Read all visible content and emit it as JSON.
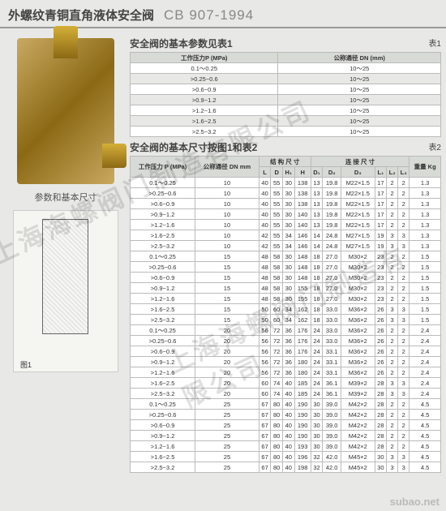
{
  "header": {
    "title_cn": "外螺纹青铜直角液体安全阀",
    "title_code": "CB 907-1994"
  },
  "left": {
    "param_label": "参数和基本尺寸",
    "fig_label": "图1"
  },
  "sect1": {
    "title": "安全阀的基本参数见表1",
    "label": "表1"
  },
  "table1": {
    "headers": [
      "工作压力P (MPa)",
      "公称通径 DN (mm)"
    ],
    "rows": [
      [
        "0.1～0.25",
        "10～25"
      ],
      [
        ">0.25~0.6",
        "10～25"
      ],
      [
        ">0.6~0.9",
        "10～25"
      ],
      [
        ">0.9~1.2",
        "10～25"
      ],
      [
        ">1.2~1.6",
        "10～25"
      ],
      [
        ">1.6~2.5",
        "10～25"
      ],
      [
        ">2.5~3.2",
        "10～25"
      ]
    ]
  },
  "sect2": {
    "title": "安全阀的基本尺寸按图1和表2",
    "label": "表2"
  },
  "table2": {
    "group_headers": [
      "工作压力 P (MPa)",
      "公称通径 DN mm",
      "结 构 尺 寸",
      "连 接 尺 寸",
      "重量 Kg"
    ],
    "sub_headers": [
      "L",
      "D",
      "H₁",
      "H",
      "D₁",
      "D₂",
      "D₃",
      "L₁",
      "L₂",
      "L₃"
    ],
    "rows": [
      [
        "0.1～0.25",
        "10",
        "40",
        "55",
        "30",
        "138",
        "13",
        "19.8",
        "M22×1.5",
        "17",
        "2",
        "2",
        "1.3"
      ],
      [
        ">0.25~0.6",
        "10",
        "40",
        "55",
        "30",
        "138",
        "13",
        "19.8",
        "M22×1.5",
        "17",
        "2",
        "2",
        "1.3"
      ],
      [
        ">0.6~0.9",
        "10",
        "40",
        "55",
        "30",
        "138",
        "13",
        "19.8",
        "M22×1.5",
        "17",
        "2",
        "2",
        "1.3"
      ],
      [
        ">0.9~1.2",
        "10",
        "40",
        "55",
        "30",
        "140",
        "13",
        "19.8",
        "M22×1.5",
        "17",
        "2",
        "2",
        "1.3"
      ],
      [
        ">1.2~1.6",
        "10",
        "40",
        "55",
        "30",
        "140",
        "13",
        "19.8",
        "M22×1.5",
        "17",
        "2",
        "2",
        "1.3"
      ],
      [
        ">1.6~2.5",
        "10",
        "42",
        "55",
        "34",
        "146",
        "14",
        "24.8",
        "M27×1.5",
        "19",
        "3",
        "3",
        "1.3"
      ],
      [
        ">2.5~3.2",
        "10",
        "42",
        "55",
        "34",
        "146",
        "14",
        "24.8",
        "M27×1.5",
        "19",
        "3",
        "3",
        "1.3"
      ],
      [
        "0.1～0.25",
        "15",
        "48",
        "58",
        "30",
        "148",
        "18",
        "27.0",
        "M30×2",
        "23",
        "2",
        "2",
        "1.5"
      ],
      [
        ">0.25~0.6",
        "15",
        "48",
        "58",
        "30",
        "148",
        "18",
        "27.0",
        "M30×2",
        "23",
        "2",
        "2",
        "1.5"
      ],
      [
        ">0.6~0.9",
        "15",
        "48",
        "58",
        "30",
        "148",
        "18",
        "27.0",
        "M30×2",
        "23",
        "2",
        "2",
        "1.5"
      ],
      [
        ">0.9~1.2",
        "15",
        "48",
        "58",
        "30",
        "155",
        "18",
        "27.0",
        "M30×2",
        "23",
        "2",
        "2",
        "1.5"
      ],
      [
        ">1.2~1.6",
        "15",
        "48",
        "58",
        "30",
        "155",
        "18",
        "27.0",
        "M30×2",
        "23",
        "2",
        "2",
        "1.5"
      ],
      [
        ">1.6~2.5",
        "15",
        "50",
        "60",
        "34",
        "162",
        "18",
        "33.0",
        "M36×2",
        "26",
        "3",
        "3",
        "1.5"
      ],
      [
        ">2.5~3.2",
        "15",
        "50",
        "60",
        "34",
        "162",
        "18",
        "33.0",
        "M36×2",
        "26",
        "3",
        "3",
        "1.5"
      ],
      [
        "0.1～0.25",
        "20",
        "56",
        "72",
        "36",
        "176",
        "24",
        "33.0",
        "M36×2",
        "26",
        "2",
        "2",
        "2.4"
      ],
      [
        ">0.25~0.6",
        "20",
        "56",
        "72",
        "36",
        "176",
        "24",
        "33.0",
        "M36×2",
        "26",
        "2",
        "2",
        "2.4"
      ],
      [
        ">0.6~0.9",
        "20",
        "56",
        "72",
        "36",
        "176",
        "24",
        "33.1",
        "M36×2",
        "26",
        "2",
        "2",
        "2.4"
      ],
      [
        ">0.9~1.2",
        "20",
        "56",
        "72",
        "36",
        "180",
        "24",
        "33.1",
        "M36×2",
        "26",
        "2",
        "2",
        "2.4"
      ],
      [
        ">1.2~1.6",
        "20",
        "56",
        "72",
        "36",
        "180",
        "24",
        "33.1",
        "M36×2",
        "26",
        "2",
        "2",
        "2.4"
      ],
      [
        ">1.6~2.5",
        "20",
        "60",
        "74",
        "40",
        "185",
        "24",
        "36.1",
        "M39×2",
        "28",
        "3",
        "3",
        "2.4"
      ],
      [
        ">2.5~3.2",
        "20",
        "60",
        "74",
        "40",
        "185",
        "24",
        "36.1",
        "M39×2",
        "28",
        "3",
        "3",
        "2.4"
      ],
      [
        "0.1～0.25",
        "25",
        "67",
        "80",
        "40",
        "190",
        "30",
        "39.0",
        "M42×2",
        "28",
        "2",
        "2",
        "4.5"
      ],
      [
        ">0.25~0.6",
        "25",
        "67",
        "80",
        "40",
        "190",
        "30",
        "39.0",
        "M42×2",
        "28",
        "2",
        "2",
        "4.5"
      ],
      [
        ">0.6~0.9",
        "25",
        "67",
        "80",
        "40",
        "190",
        "30",
        "39.0",
        "M42×2",
        "28",
        "2",
        "2",
        "4.5"
      ],
      [
        ">0.9~1.2",
        "25",
        "67",
        "80",
        "40",
        "190",
        "30",
        "39.0",
        "M42×2",
        "28",
        "2",
        "2",
        "4.5"
      ],
      [
        ">1.2~1.6",
        "25",
        "67",
        "80",
        "40",
        "193",
        "30",
        "39.0",
        "M42×2",
        "28",
        "2",
        "2",
        "4.5"
      ],
      [
        ">1.6~2.5",
        "25",
        "67",
        "80",
        "40",
        "196",
        "32",
        "42.0",
        "M45×2",
        "30",
        "3",
        "3",
        "4.5"
      ],
      [
        ">2.5~3.2",
        "25",
        "67",
        "80",
        "40",
        "198",
        "32",
        "42.0",
        "M45×2",
        "30",
        "3",
        "3",
        "4.5"
      ]
    ]
  },
  "watermark": "上海海螺阀门制造有限公司",
  "footer_wm": "subao.net"
}
